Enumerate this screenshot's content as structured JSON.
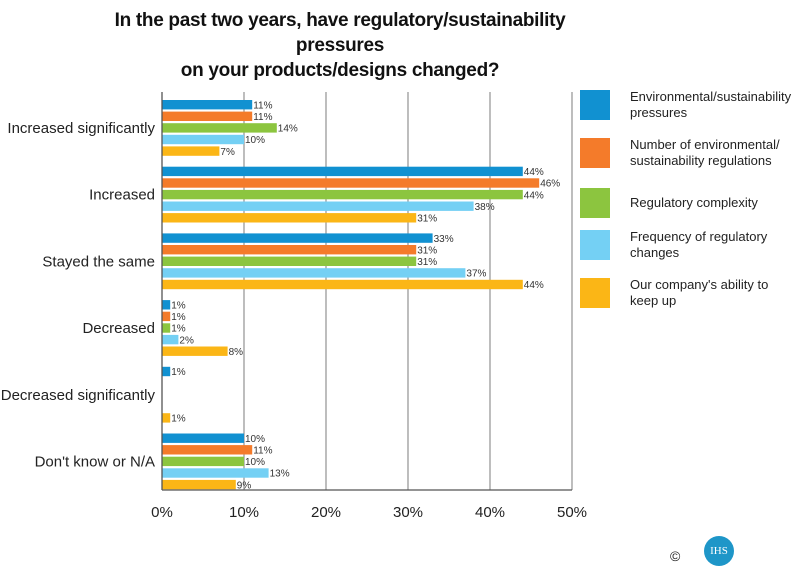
{
  "chart_data": {
    "type": "bar",
    "orientation": "horizontal",
    "title": [
      "In the past two years, have regulatory/sustainability pressures",
      "on your products/designs changed?"
    ],
    "categories": [
      "Increased significantly",
      "Increased",
      "Stayed the same",
      "Decreased",
      "Decreased significantly",
      "Don't know or N/A"
    ],
    "series": [
      {
        "name": "Environmental/sustainability pressures",
        "color": "#1191d1",
        "values": [
          11,
          44,
          33,
          1,
          1,
          10
        ]
      },
      {
        "name": "Number of environmental/ sustainability regulations",
        "color": "#f47b2a",
        "values": [
          11,
          46,
          31,
          1,
          null,
          11
        ]
      },
      {
        "name": "Regulatory complexity",
        "color": "#8cc53f",
        "values": [
          14,
          44,
          31,
          1,
          null,
          10
        ]
      },
      {
        "name": "Frequency of regulatory changes",
        "color": "#74d0f4",
        "values": [
          10,
          38,
          37,
          2,
          null,
          13
        ]
      },
      {
        "name": "Our company's ability to keep up",
        "color": "#fbb616",
        "values": [
          7,
          31,
          44,
          8,
          1,
          9
        ]
      }
    ],
    "xlim": [
      0,
      50
    ],
    "xticks": [
      0,
      10,
      20,
      30,
      40,
      50
    ],
    "xtick_labels": [
      "0%",
      "10%",
      "20%",
      "30%",
      "40%",
      "50%"
    ],
    "value_suffix": "%",
    "grid": true,
    "legend_position": "right"
  },
  "legend_lines": [
    [
      "Environmental/sustainability",
      "pressures"
    ],
    [
      "Number of environmental/",
      "sustainability regulations"
    ],
    [
      "Regulatory complexity"
    ],
    [
      "Frequency of regulatory",
      "changes"
    ],
    [
      "Our company's ability to",
      "keep up"
    ]
  ],
  "footer": {
    "copyright": "©",
    "logo_text": "IHS"
  }
}
